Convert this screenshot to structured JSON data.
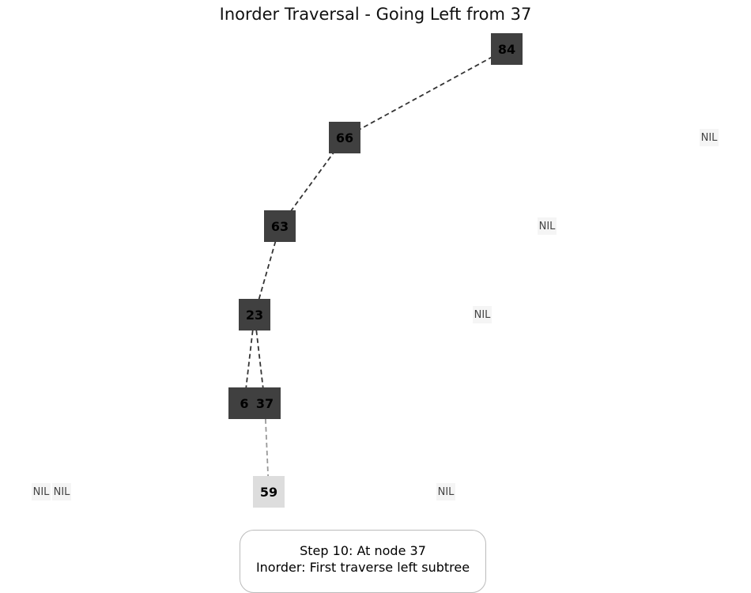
{
  "title": "Inorder Traversal - Going Left from 37",
  "nodes": [
    {
      "id": "84",
      "label": "84",
      "state": "visited"
    },
    {
      "id": "66",
      "label": "66",
      "state": "visited"
    },
    {
      "id": "63",
      "label": "63",
      "state": "visited"
    },
    {
      "id": "23",
      "label": "23",
      "state": "visited"
    },
    {
      "id": "6",
      "label": "6",
      "state": "visited"
    },
    {
      "id": "37",
      "label": "37",
      "state": "visited"
    },
    {
      "id": "59",
      "label": "59",
      "state": "pending"
    }
  ],
  "edges": [
    {
      "from": "84",
      "to": "66",
      "style": "visited"
    },
    {
      "from": "66",
      "to": "63",
      "style": "visited"
    },
    {
      "from": "63",
      "to": "23",
      "style": "visited"
    },
    {
      "from": "23",
      "to": "6",
      "style": "visited"
    },
    {
      "from": "23",
      "to": "37",
      "style": "visited"
    },
    {
      "from": "37",
      "to": "59",
      "style": "pending"
    }
  ],
  "nil_label": "NIL",
  "nil_count": 6,
  "status": {
    "line1": "Step 10: At node 37",
    "line2": "Inorder: First traverse left subtree"
  },
  "colors": {
    "visited": "#404040",
    "pending": "#dddddd",
    "edge_visited": "#333333",
    "edge_pending": "#999999"
  }
}
